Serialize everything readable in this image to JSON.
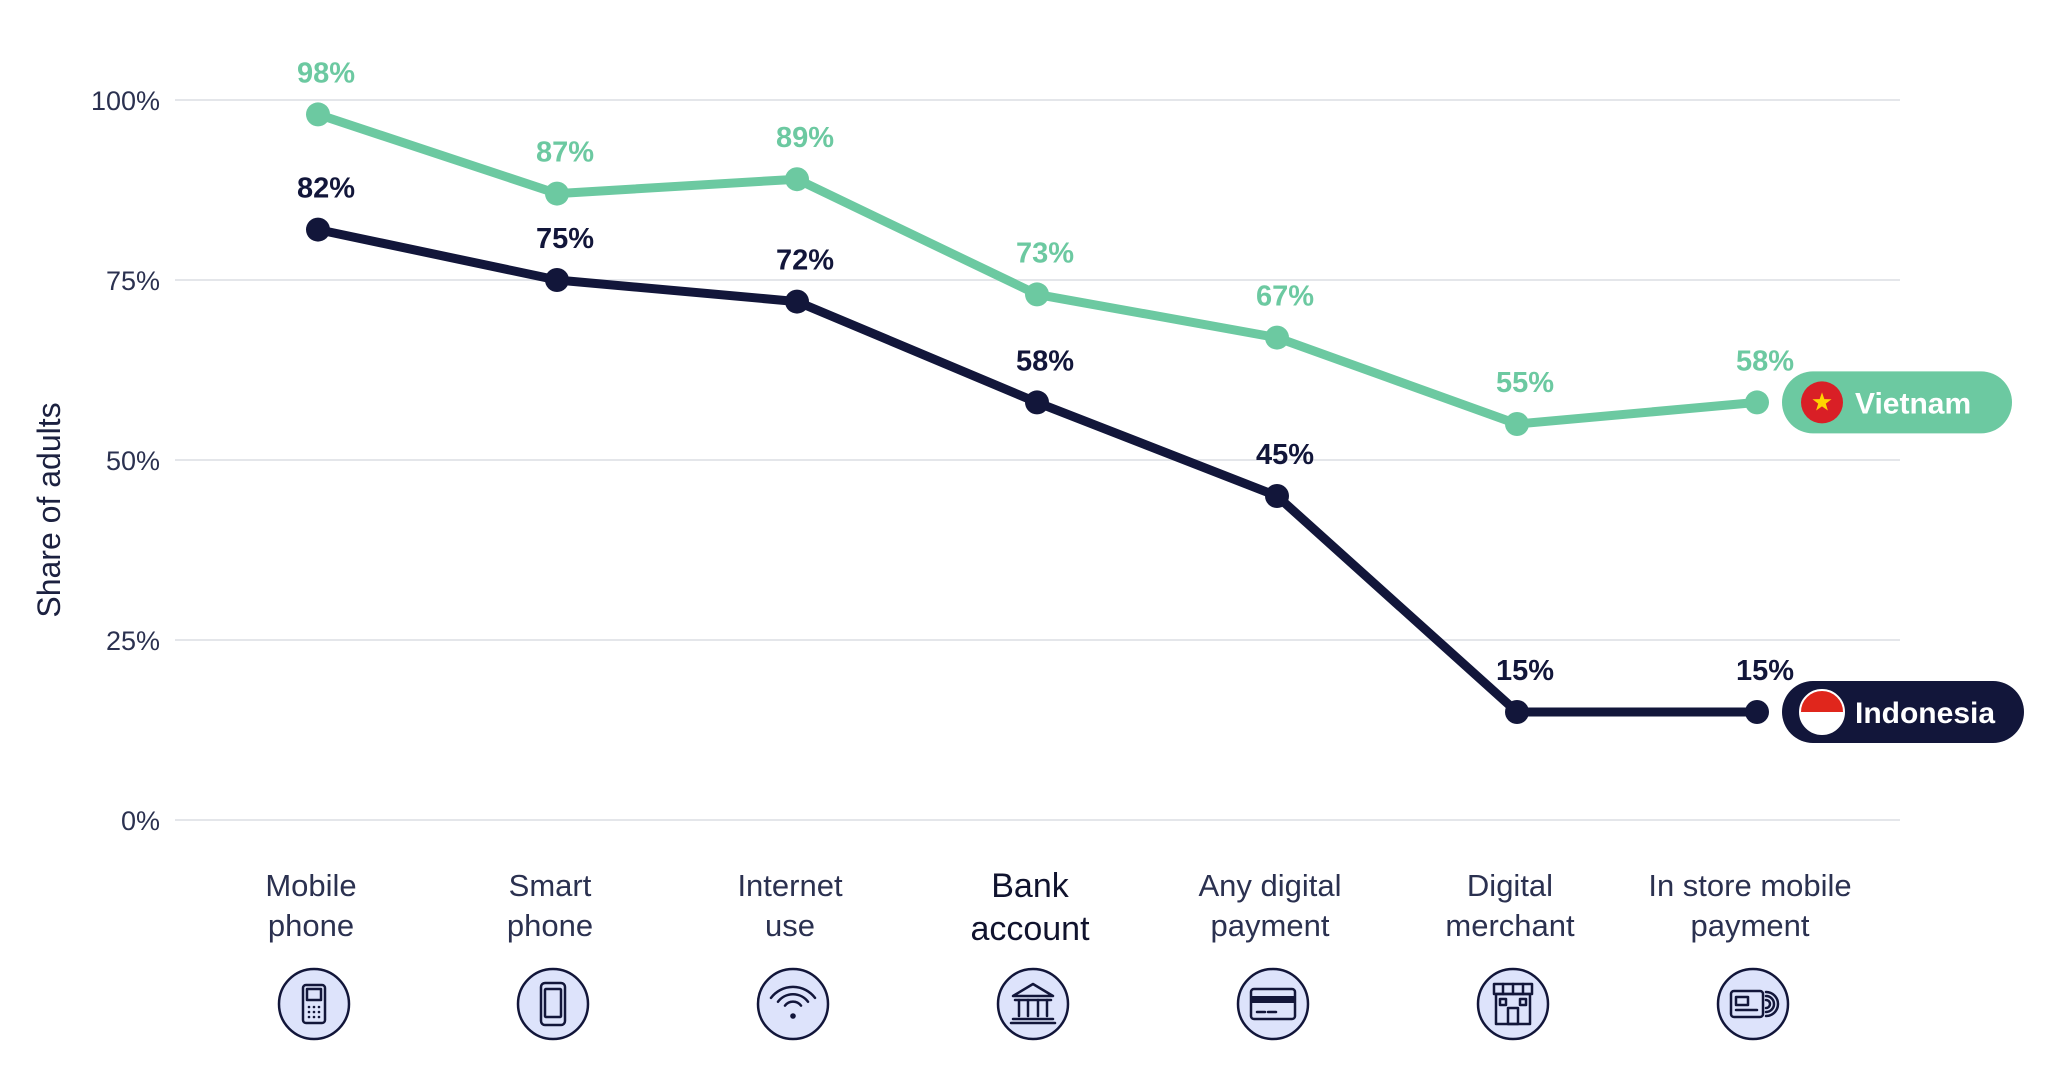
{
  "chart_data": {
    "type": "line",
    "ylabel": "Share of adults",
    "xlabel": "",
    "ylim": [
      0,
      100
    ],
    "yticks": [
      "0%",
      "25%",
      "50%",
      "75%",
      "100%"
    ],
    "grid": true,
    "categories": [
      [
        "Mobile",
        "phone"
      ],
      [
        "Smart",
        "phone"
      ],
      [
        "Internet",
        "use"
      ],
      [
        "Bank",
        "account"
      ],
      [
        "Any digital",
        "payment"
      ],
      [
        "Digital",
        "merchant"
      ],
      [
        "In store mobile",
        "payment"
      ]
    ],
    "category_icons": [
      "mobile-phone-icon",
      "smartphone-icon",
      "wifi-icon",
      "bank-icon",
      "credit-card-icon",
      "store-icon",
      "contactless-card-icon"
    ],
    "highlighted_category": 3,
    "series": [
      {
        "name": "Vietnam",
        "values": [
          98,
          87,
          89,
          73,
          67,
          55,
          58
        ],
        "labels": [
          "98%",
          "87%",
          "89%",
          "73%",
          "67%",
          "55%",
          "58%"
        ],
        "color": "#6cc9a1",
        "flag": "vietnam-flag-icon"
      },
      {
        "name": "Indonesia",
        "values": [
          82,
          75,
          72,
          58,
          45,
          15,
          15
        ],
        "labels": [
          "82%",
          "75%",
          "72%",
          "58%",
          "45%",
          "15%",
          "15%"
        ],
        "color": "#12163a",
        "flag": "indonesia-flag-icon"
      }
    ]
  },
  "colors": {
    "grid": "#e4e6ea",
    "axis_text": "#2b3150",
    "icon_fill": "#dde3fb",
    "icon_stroke": "#12163a"
  }
}
